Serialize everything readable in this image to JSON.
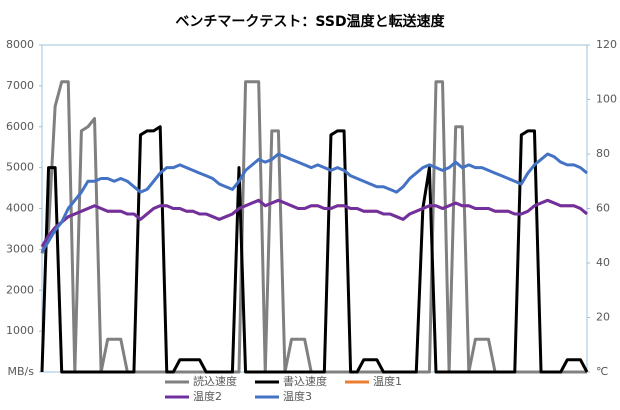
{
  "chart_data": {
    "type": "line",
    "title": "ベンチマークテスト：SSD温度と転送速度",
    "ylim": [
      0,
      8000
    ],
    "yticks": [
      {
        "value": 0,
        "label": "MB/s"
      },
      1000,
      2000,
      3000,
      4000,
      5000,
      6000,
      7000,
      8000
    ],
    "y2lim": [
      0,
      120
    ],
    "y2ticks": [
      {
        "value": 0,
        "label": "℃"
      },
      20,
      40,
      60,
      80,
      100,
      120
    ],
    "grid": false,
    "legend": "bottom",
    "series": [
      {
        "name": "読込速度",
        "color": "#808080",
        "values": [
          2900,
          3500,
          6500,
          7100,
          7100,
          0,
          5900,
          6000,
          6200,
          0,
          800,
          800,
          800,
          0,
          0,
          0,
          0,
          0,
          0,
          0,
          0,
          0,
          0,
          0,
          0,
          0,
          0,
          0,
          0,
          0,
          0,
          7100,
          7100,
          7100,
          0,
          5900,
          5900,
          0,
          800,
          800,
          800,
          0,
          0,
          0,
          0,
          0,
          0,
          0,
          0,
          0,
          0,
          0,
          0,
          0,
          0,
          0,
          0,
          0,
          0,
          0,
          7100,
          7100,
          0,
          6000,
          6000,
          0,
          800,
          800,
          800,
          0,
          0,
          0,
          0,
          0,
          0,
          0,
          0,
          0,
          0,
          0,
          0,
          0,
          0,
          0
        ]
      },
      {
        "name": "書込速度",
        "color": "#000000",
        "values": [
          0,
          5000,
          5000,
          0,
          0,
          0,
          0,
          0,
          0,
          0,
          0,
          0,
          0,
          0,
          0,
          5800,
          5900,
          5900,
          6000,
          0,
          0,
          300,
          300,
          300,
          300,
          0,
          0,
          0,
          0,
          0,
          5000,
          0,
          0,
          0,
          0,
          0,
          0,
          0,
          0,
          0,
          0,
          0,
          0,
          0,
          5800,
          5900,
          5900,
          0,
          0,
          300,
          300,
          300,
          0,
          0,
          0,
          0,
          0,
          0,
          4000,
          5000,
          0,
          0,
          0,
          0,
          0,
          0,
          0,
          0,
          0,
          0,
          0,
          0,
          0,
          5800,
          5900,
          5900,
          0,
          0,
          0,
          0,
          300,
          300,
          300,
          0
        ]
      },
      {
        "name": "温度1",
        "color": "#ed7d31",
        "axis": "y2",
        "values": [
          46,
          50,
          53,
          55,
          57,
          58,
          59,
          60,
          61,
          60,
          59,
          59,
          59,
          58,
          58,
          56,
          58,
          60,
          61,
          61,
          60,
          60,
          59,
          59,
          58,
          58,
          57,
          56,
          57,
          58,
          60,
          61,
          62,
          63,
          61,
          62,
          63,
          62,
          61,
          60,
          60,
          61,
          61,
          60,
          60,
          61,
          61,
          60,
          60,
          59,
          59,
          59,
          58,
          58,
          57,
          56,
          58,
          59,
          60,
          61,
          61,
          60,
          61,
          62,
          61,
          61,
          60,
          60,
          60,
          59,
          59,
          59,
          58,
          58,
          59,
          61,
          62,
          63,
          62,
          61,
          61,
          61,
          60,
          58
        ]
      },
      {
        "name": "温度2",
        "color": "#7030a0",
        "axis": "y2",
        "values": [
          46,
          50,
          53,
          55,
          57,
          58,
          59,
          60,
          61,
          60,
          59,
          59,
          59,
          58,
          58,
          56,
          58,
          60,
          61,
          61,
          60,
          60,
          59,
          59,
          58,
          58,
          57,
          56,
          57,
          58,
          60,
          61,
          62,
          63,
          61,
          62,
          63,
          62,
          61,
          60,
          60,
          61,
          61,
          60,
          60,
          61,
          61,
          60,
          60,
          59,
          59,
          59,
          58,
          58,
          57,
          56,
          58,
          59,
          60,
          61,
          61,
          60,
          61,
          62,
          61,
          61,
          60,
          60,
          60,
          59,
          59,
          59,
          58,
          58,
          59,
          61,
          62,
          63,
          62,
          61,
          61,
          61,
          60,
          58
        ]
      },
      {
        "name": "温度3",
        "color": "#4472c4",
        "axis": "y2",
        "values": [
          44,
          48,
          52,
          55,
          60,
          63,
          66,
          70,
          70,
          71,
          71,
          70,
          71,
          70,
          68,
          66,
          67,
          70,
          73,
          75,
          75,
          76,
          75,
          74,
          73,
          72,
          71,
          69,
          68,
          67,
          70,
          74,
          76,
          78,
          77,
          78,
          80,
          79,
          78,
          77,
          76,
          75,
          76,
          75,
          74,
          75,
          74,
          72,
          71,
          70,
          69,
          68,
          68,
          67,
          66,
          68,
          71,
          73,
          75,
          76,
          75,
          74,
          75,
          77,
          75,
          76,
          75,
          75,
          74,
          73,
          72,
          71,
          70,
          69,
          73,
          76,
          78,
          80,
          79,
          77,
          76,
          76,
          75,
          73
        ]
      }
    ]
  }
}
